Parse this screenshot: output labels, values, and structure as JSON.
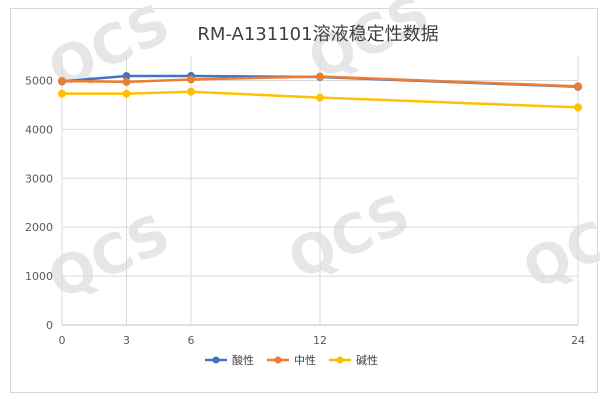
{
  "chart_data": {
    "type": "line",
    "title": "RM-A131101溶液稳定性数据",
    "xlabel": "",
    "ylabel": "",
    "x": [
      0,
      3,
      6,
      12,
      24
    ],
    "x_ticks": [
      "0",
      "3",
      "6",
      "12",
      "24"
    ],
    "ylim": [
      0,
      5500
    ],
    "y_ticks": [
      "0",
      "1000",
      "2000",
      "3000",
      "4000",
      "5000"
    ],
    "grid": true,
    "legend_position": "bottom",
    "series": [
      {
        "name": "酸性",
        "color": "#4472c4",
        "values": [
          4980,
          5090,
          5090,
          5070,
          4870
        ]
      },
      {
        "name": "中性",
        "color": "#ed7d31",
        "values": [
          4990,
          4970,
          5020,
          5080,
          4880
        ]
      },
      {
        "name": "碱性",
        "color": "#ffc000",
        "values": [
          4730,
          4730,
          4770,
          4650,
          4450
        ]
      }
    ]
  },
  "watermark": "QCS"
}
